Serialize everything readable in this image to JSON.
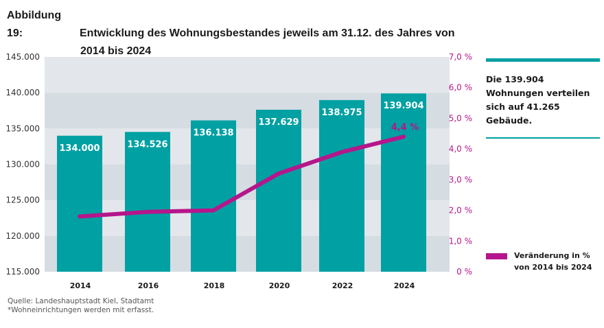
{
  "title": {
    "label": "Abbildung 19:",
    "line1": "Entwicklung des Wohnungsbestandes jeweils am 31.12. des Jahres von",
    "line2": "2014 bis 2024"
  },
  "info_box": {
    "text": "Die 139.904 Wohnungen verteilen sich auf 41.265 Gebäude."
  },
  "legend": {
    "line1": "Veränderung in %",
    "line2": "von 2014 bis 2024"
  },
  "source": {
    "line1": "Quelle: Landeshauptstadt Kiel, Stadtamt",
    "line2": "*Wohneinrichtungen werden mit erfasst."
  },
  "colors": {
    "bar": "#00a0a3",
    "line": "#b5168b",
    "band_light": "#e3e6ea",
    "band_dark": "#d5dce2"
  },
  "chart_data": {
    "type": "bar",
    "title": "Entwicklung des Wohnungsbestandes jeweils am 31.12. des Jahres von 2014 bis 2024",
    "categories": [
      "2014",
      "2016",
      "2018",
      "2020",
      "2022",
      "2024"
    ],
    "series": [
      {
        "name": "Wohnungsbestand",
        "type": "bar",
        "axis": "left",
        "values": [
          134000,
          134526,
          136138,
          137629,
          138975,
          139904
        ],
        "labels": [
          "134.000",
          "134.526",
          "136.138",
          "137.629",
          "138.975",
          "139.904"
        ]
      },
      {
        "name": "Veränderung in % von 2014 bis 2024",
        "type": "line",
        "axis": "right",
        "values": [
          1.8,
          1.95,
          2.0,
          3.2,
          3.9,
          4.4
        ],
        "end_label": "4,4 %"
      }
    ],
    "ylim": [
      115000,
      145000
    ],
    "yticks": [
      115000,
      120000,
      125000,
      130000,
      135000,
      140000,
      145000
    ],
    "ytick_labels": [
      "115.000",
      "120.000",
      "125.000",
      "130.000",
      "135.000",
      "140.000",
      "145.000"
    ],
    "y2lim": [
      0,
      7
    ],
    "y2ticks": [
      0,
      1,
      2,
      3,
      4,
      5,
      6,
      7
    ],
    "y2tick_labels": [
      "0 %",
      "1,0 %",
      "2,0 %",
      "3,0 %",
      "4,0 %",
      "5,0 %",
      "6,0 %",
      "7,0 %"
    ],
    "xlabel": "",
    "ylabel": "",
    "grid": "alternating horizontal bands",
    "legend_position": "right"
  }
}
